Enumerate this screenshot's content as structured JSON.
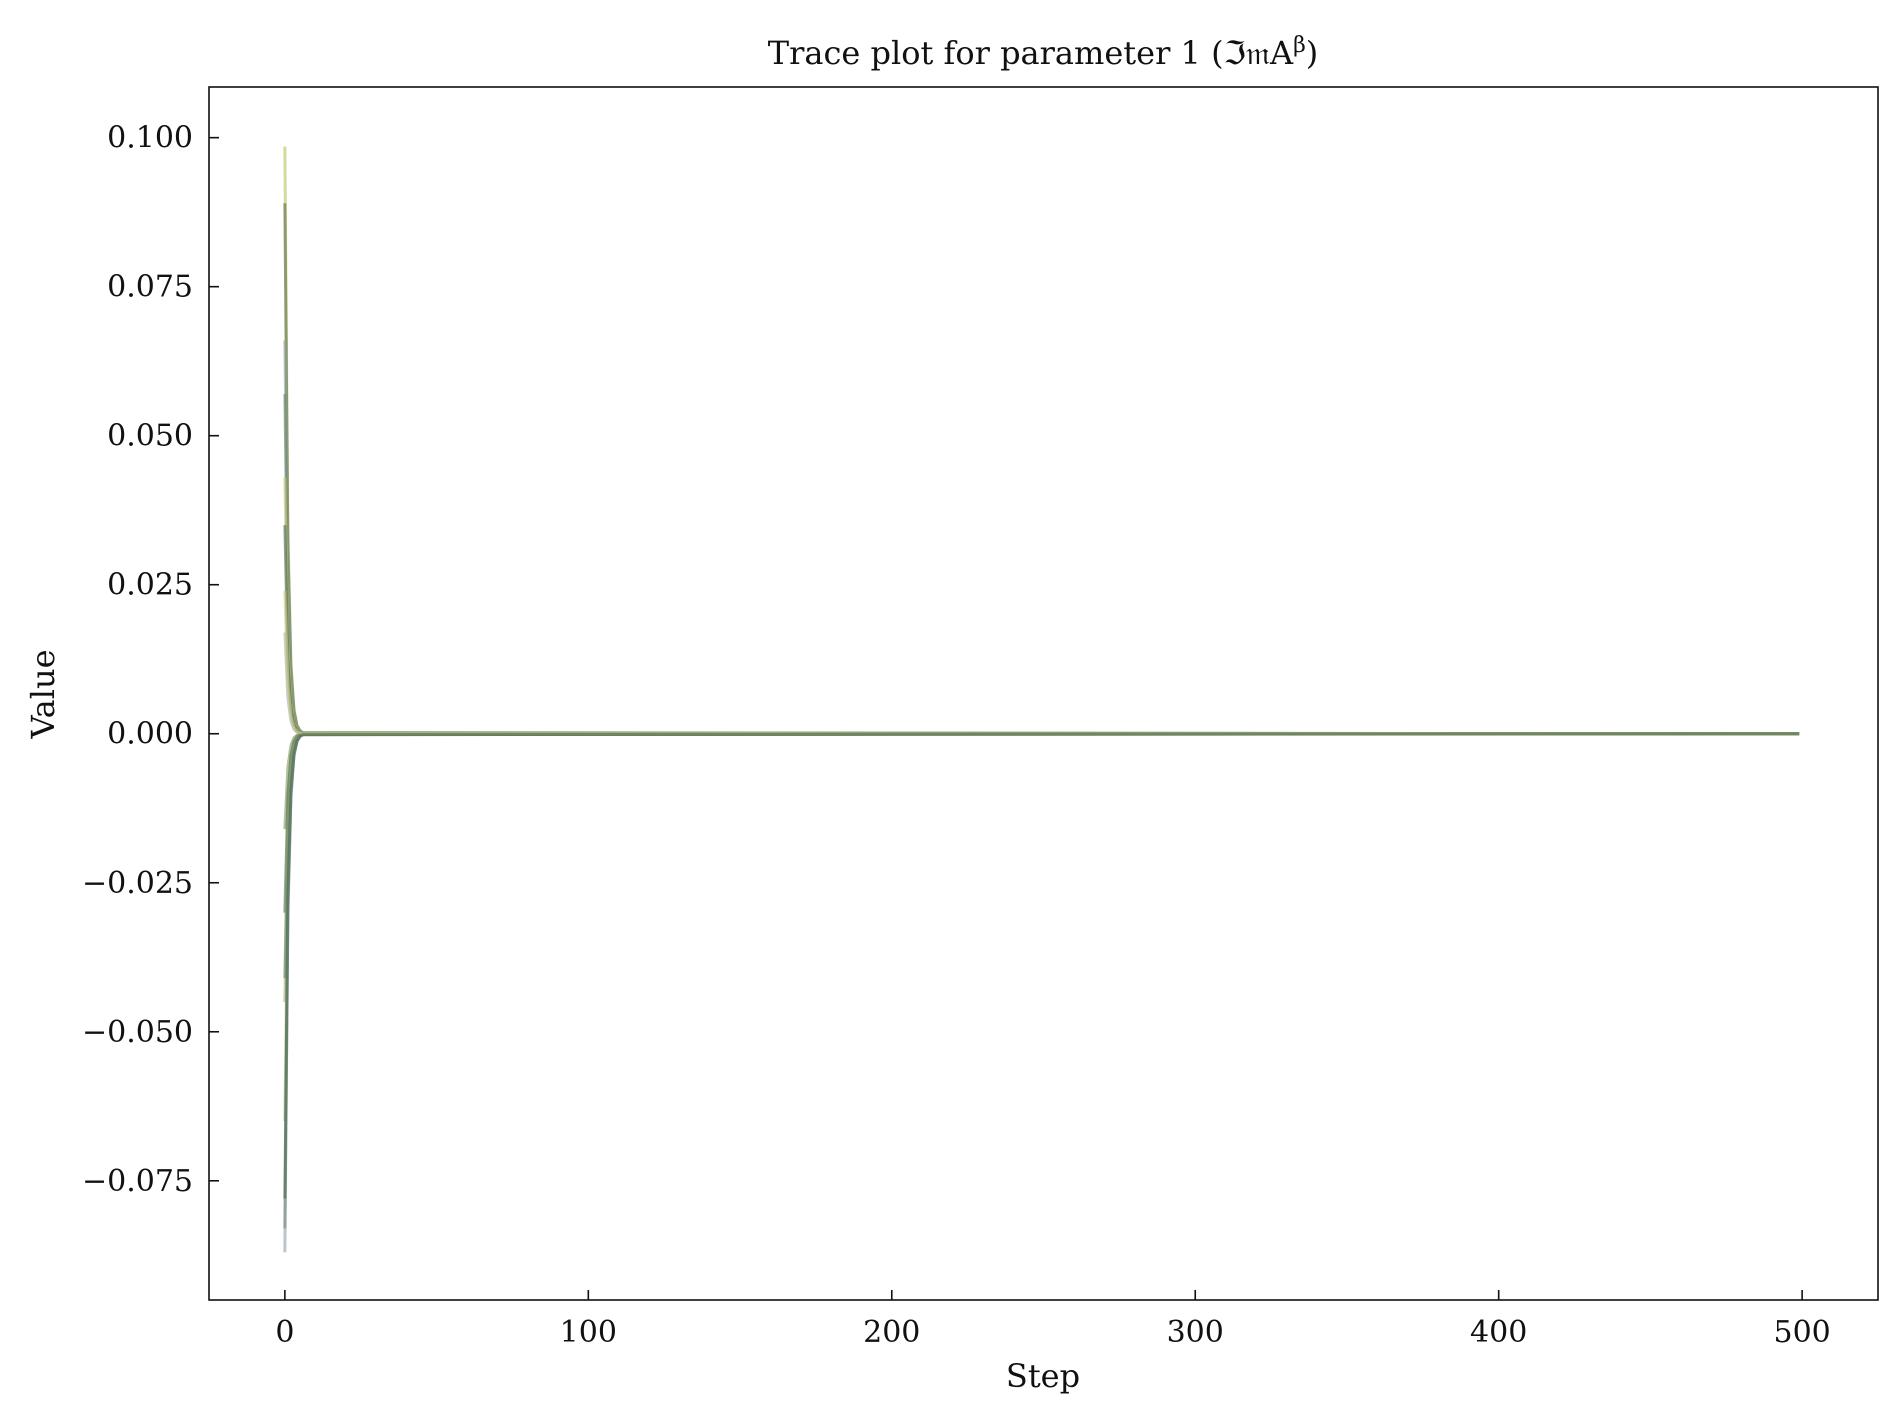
{
  "chart_data": {
    "type": "line",
    "title": "Trace plot for parameter 1 (ℑ𝔪A",
    "title_superscript": "β",
    "title_suffix": ")",
    "xlabel": "Step",
    "ylabel": "Value",
    "xlim": [
      -25,
      525
    ],
    "ylim": [
      -0.095,
      0.1085
    ],
    "x_ticks": [
      0,
      100,
      200,
      300,
      400,
      500
    ],
    "x_tick_labels": [
      "0",
      "100",
      "200",
      "300",
      "400",
      "500"
    ],
    "y_ticks": [
      -0.075,
      -0.05,
      -0.025,
      0.0,
      0.025,
      0.05,
      0.075,
      0.1
    ],
    "y_tick_labels": [
      "−0.075",
      "−0.050",
      "−0.025",
      "0.000",
      "0.025",
      "0.050",
      "0.075",
      "0.100"
    ],
    "grid": false,
    "x_end": 499,
    "series_colors": [
      "#b8c25a",
      "#5c7048",
      "#8aa0a8",
      "#6c8a6a",
      "#c9c47a",
      "#4a6a52",
      "#a3b3b6",
      "#7d9a5c",
      "#556b4a",
      "#9fb07a"
    ],
    "chains_initial_values": [
      0.0985,
      0.089,
      0.066,
      0.057,
      0.043,
      0.035,
      0.017,
      -0.016,
      -0.03,
      -0.045,
      -0.065,
      -0.083,
      -0.087,
      -0.041,
      0.024,
      -0.078
    ],
    "chains_settled_value": 0.0,
    "settle_step": 6
  }
}
